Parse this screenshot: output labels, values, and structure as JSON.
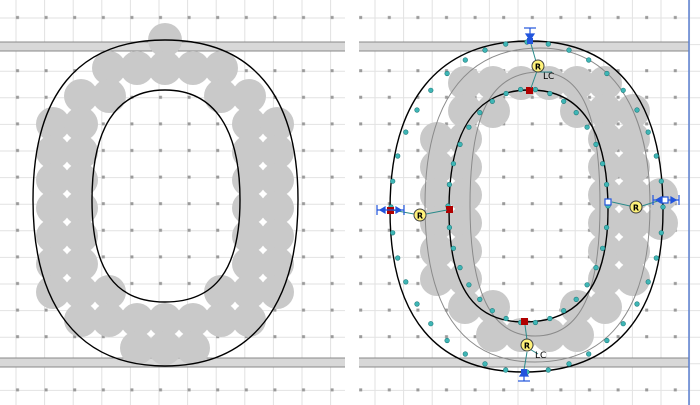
{
  "panels": [
    {
      "id": "left",
      "role": "glyph-bitmap-preview"
    },
    {
      "id": "right",
      "role": "glyph-outline-editor"
    }
  ],
  "hint_labels": {
    "round": "R",
    "link_connector": "LC"
  },
  "colors": {
    "background": "#ffffff",
    "grid_dot": "#9a9a9a",
    "grid_line": "#d8d8d8",
    "metric_band": "#d6d6d6",
    "pixel_gray": "#c9c9c9",
    "outline": "#000000",
    "original_outline": "#9a9a9a",
    "control_point": "#3fb6b6",
    "on_point": "#b00000",
    "hint_fill": "#fff27a",
    "hint_stroke": "#404040",
    "anchor_blue": "#2255dd",
    "editor_border": "#5a7fd0"
  },
  "icons": [
    "round-hint-icon",
    "link-connector-label",
    "anchor-arrow-icon"
  ]
}
